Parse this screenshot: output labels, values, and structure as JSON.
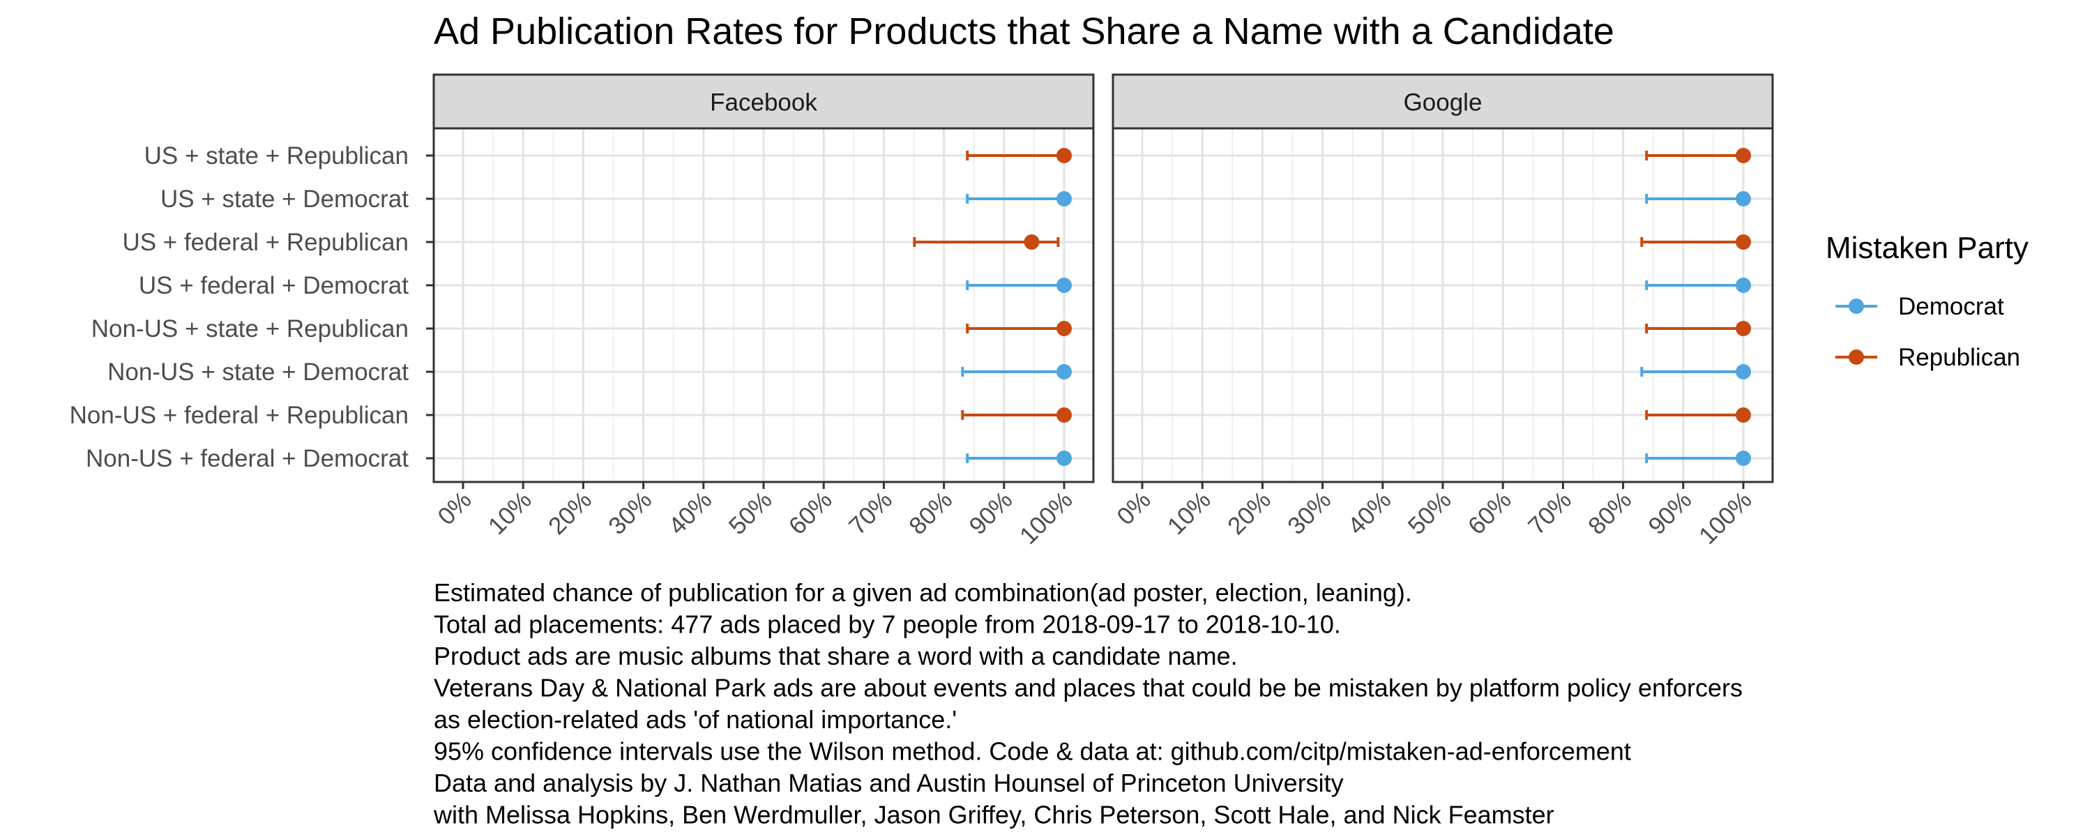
{
  "chart_data": {
    "type": "dot-errorbar",
    "title": "Ad Publication Rates for Products that Share a Name with a Candidate",
    "facets": [
      "Facebook",
      "Google"
    ],
    "categories": [
      "US + state + Republican",
      "US + state + Democrat",
      "US + federal + Republican",
      "US + federal + Democrat",
      "Non-US + state + Republican",
      "Non-US + state + Democrat",
      "Non-US + federal + Republican",
      "Non-US + federal + Democrat"
    ],
    "category_party": [
      "Republican",
      "Democrat",
      "Republican",
      "Democrat",
      "Republican",
      "Democrat",
      "Republican",
      "Democrat"
    ],
    "x_ticks": [
      "0%",
      "10%",
      "20%",
      "30%",
      "40%",
      "50%",
      "60%",
      "70%",
      "80%",
      "90%",
      "100%"
    ],
    "xlim": [
      0,
      1
    ],
    "grid": true,
    "legend": {
      "title": "Mistaken Party",
      "position": "right",
      "entries": [
        {
          "name": "Democrat",
          "color": "#4ea5e0"
        },
        {
          "name": "Republican",
          "color": "#c94a10"
        }
      ]
    },
    "series": [
      {
        "facet": "Facebook",
        "estimate": [
          1.0,
          1.0,
          0.946,
          1.0,
          1.0,
          1.0,
          1.0,
          1.0
        ],
        "lower": [
          0.839,
          0.839,
          0.751,
          0.839,
          0.839,
          0.831,
          0.831,
          0.839
        ],
        "upper": [
          1.0,
          1.0,
          0.99,
          1.0,
          1.0,
          1.0,
          1.0,
          1.0
        ]
      },
      {
        "facet": "Google",
        "estimate": [
          1.0,
          1.0,
          1.0,
          1.0,
          1.0,
          1.0,
          1.0,
          1.0
        ],
        "lower": [
          0.839,
          0.839,
          0.831,
          0.839,
          0.839,
          0.831,
          0.839,
          0.839
        ],
        "upper": [
          1.0,
          1.0,
          1.0,
          1.0,
          1.0,
          1.0,
          1.0,
          1.0
        ]
      }
    ]
  },
  "caption": [
    "Estimated chance of publication for a given ad combination(ad poster, election, leaning).",
    "Total ad placements: 477 ads placed by 7 people from 2018-09-17 to 2018-10-10.",
    "Product ads are music albums that share a word with a candidate name.",
    "Veterans Day & National Park ads are about events and places that could be be mistaken by platform policy enforcers",
    "as election-related ads 'of national importance.'",
    "95% confidence intervals use the Wilson method. Code & data at: github.com/citp/mistaken-ad-enforcement",
    "Data and analysis by J. Nathan Matias and Austin Hounsel of Princeton University",
    "with Melissa Hopkins, Ben Werdmuller, Jason Griffey, Chris Peterson, Scott Hale, and Nick Feamster"
  ]
}
